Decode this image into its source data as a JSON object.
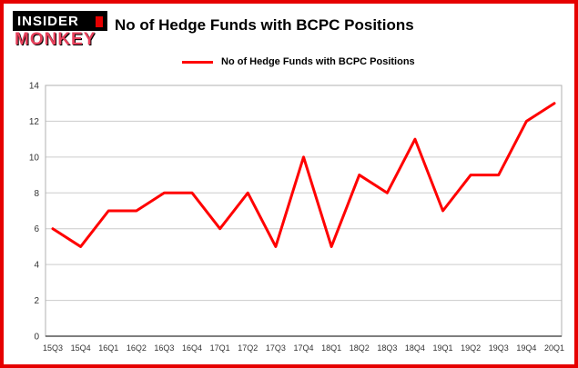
{
  "logo": {
    "line1": "INSIDER",
    "line2": "MONKEY"
  },
  "header": {
    "title": "No of Hedge Funds with BCPC Positions"
  },
  "legend": {
    "label": "No of Hedge Funds with BCPC Positions"
  },
  "colors": {
    "line": "#ff0000",
    "border": "#e60000",
    "grid": "#cccccc",
    "axis": "#b0b0b0"
  },
  "chart_data": {
    "type": "line",
    "title": "No of Hedge Funds with BCPC Positions",
    "categories": [
      "15Q3",
      "15Q4",
      "16Q1",
      "16Q2",
      "16Q3",
      "16Q4",
      "17Q1",
      "17Q2",
      "17Q3",
      "17Q4",
      "18Q1",
      "18Q2",
      "18Q3",
      "18Q4",
      "19Q1",
      "19Q2",
      "19Q3",
      "19Q4",
      "20Q1"
    ],
    "values": [
      6,
      5,
      7,
      7,
      8,
      8,
      6,
      8,
      5,
      10,
      5,
      9,
      8,
      11,
      7,
      9,
      9,
      12,
      13
    ],
    "xlabel": "",
    "ylabel": "",
    "ylim": [
      0,
      14
    ],
    "yticks": [
      0,
      2,
      4,
      6,
      8,
      10,
      12,
      14
    ],
    "grid": true,
    "legend_position": "top-left",
    "series_color": "#ff0000"
  }
}
